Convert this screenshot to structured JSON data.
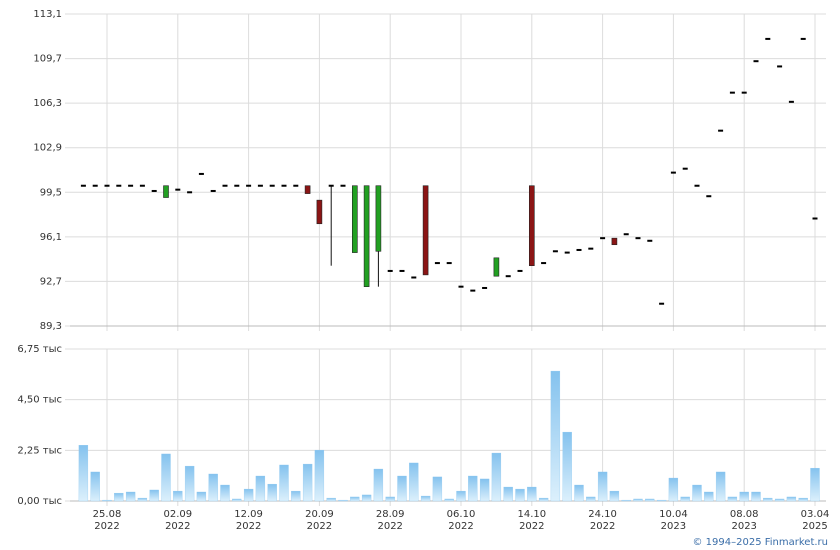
{
  "chart_data": [
    {
      "type": "candlestick",
      "open": [
        100,
        100,
        100,
        100,
        100,
        100,
        99.6,
        99.1,
        99.7,
        99.5,
        100.9,
        99.6,
        100,
        100,
        100,
        100,
        100,
        100,
        100,
        100,
        98.9,
        100,
        100,
        94.9,
        92.3,
        95.0,
        93.5,
        93.5,
        93.0,
        100,
        94.1,
        94.1,
        92.3,
        92.0,
        92.2,
        93.1,
        93.1,
        93.5,
        100,
        94.1,
        95.0,
        94.9,
        95.1,
        95.2,
        96.0,
        96.0,
        96.3,
        96.0,
        95.8,
        91.0,
        101.0,
        101.3,
        100,
        99.2,
        104.2,
        107.1,
        107.1,
        109.5,
        111.2,
        109.1,
        106.4,
        111.2,
        97.5
      ],
      "high": [
        100,
        100,
        100,
        100,
        100,
        100,
        99.6,
        100,
        99.7,
        99.5,
        100.9,
        99.6,
        100,
        100,
        100,
        100,
        100,
        100,
        100,
        100,
        98.9,
        100,
        100,
        100,
        100,
        100,
        93.5,
        93.5,
        93.0,
        100,
        94.1,
        94.1,
        92.3,
        92.0,
        92.2,
        94.5,
        93.1,
        93.5,
        100,
        94.1,
        95.0,
        94.9,
        95.1,
        95.2,
        96.0,
        96.0,
        96.3,
        96.0,
        95.8,
        91.0,
        101.0,
        101.3,
        100,
        99.2,
        104.2,
        107.1,
        107.1,
        109.5,
        111.2,
        109.1,
        106.4,
        111.2,
        97.5
      ],
      "low": [
        100,
        100,
        100,
        100,
        100,
        100,
        99.6,
        99.1,
        99.7,
        99.5,
        100.9,
        99.6,
        100,
        100,
        100,
        100,
        100,
        100,
        100,
        99.4,
        97.1,
        93.9,
        100,
        94.9,
        92.3,
        92.3,
        93.5,
        93.5,
        93.0,
        93.2,
        94.1,
        94.1,
        92.3,
        92.0,
        92.2,
        93.1,
        93.1,
        93.5,
        93.9,
        94.1,
        95.0,
        94.9,
        95.1,
        95.2,
        96.0,
        95.5,
        96.3,
        96.0,
        95.8,
        91.0,
        101.0,
        101.3,
        100,
        99.2,
        104.2,
        107.1,
        107.1,
        109.5,
        111.2,
        109.1,
        106.4,
        111.2,
        97.5
      ],
      "close": [
        100,
        100,
        100,
        100,
        100,
        100,
        99.6,
        100,
        99.7,
        99.5,
        100.9,
        99.6,
        100,
        100,
        100,
        100,
        100,
        100,
        100,
        99.4,
        97.1,
        100,
        100,
        100,
        100,
        100,
        93.5,
        93.5,
        93.0,
        93.2,
        94.1,
        94.1,
        92.3,
        92.0,
        92.2,
        94.5,
        93.1,
        93.5,
        93.9,
        94.1,
        95.0,
        94.9,
        95.1,
        95.2,
        96.0,
        95.5,
        96.3,
        96.0,
        95.8,
        91.0,
        101.0,
        101.3,
        100,
        99.2,
        104.2,
        107.1,
        107.1,
        109.5,
        111.2,
        109.1,
        106.4,
        111.2,
        97.5
      ],
      "up_color": "#22a022",
      "down_color": "#8b1515",
      "flat_color": "#000000",
      "ylim": [
        89.3,
        113.1
      ],
      "yticks": [
        {
          "value": 89.3,
          "label": "89,3"
        },
        {
          "value": 92.7,
          "label": "92,7"
        },
        {
          "value": 96.1,
          "label": "96,1"
        },
        {
          "value": 99.5,
          "label": "99,5"
        },
        {
          "value": 102.9,
          "label": "102,9"
        },
        {
          "value": 106.3,
          "label": "106,3"
        },
        {
          "value": 109.7,
          "label": "109,7"
        },
        {
          "value": 113.1,
          "label": "113,1"
        }
      ],
      "grid": true
    },
    {
      "type": "bar",
      "categories": [
        null,
        null,
        "25.08",
        null,
        null,
        null,
        null,
        null,
        "02.09",
        null,
        null,
        null,
        null,
        null,
        "12.09",
        null,
        null,
        null,
        null,
        null,
        "20.09",
        null,
        null,
        null,
        null,
        null,
        "28.09",
        null,
        null,
        null,
        null,
        null,
        "06.10",
        null,
        null,
        null,
        null,
        null,
        "14.10",
        null,
        null,
        null,
        null,
        null,
        "24.10",
        null,
        null,
        null,
        null,
        null,
        "10.04",
        null,
        null,
        null,
        null,
        null,
        "08.08",
        null,
        null,
        null,
        null,
        null,
        "03.04"
      ],
      "category_years": [
        null,
        null,
        "2022",
        null,
        null,
        null,
        null,
        null,
        "2022",
        null,
        null,
        null,
        null,
        null,
        "2022",
        null,
        null,
        null,
        null,
        null,
        "2022",
        null,
        null,
        null,
        null,
        null,
        "2022",
        null,
        null,
        null,
        null,
        null,
        "2022",
        null,
        null,
        null,
        null,
        null,
        "2022",
        null,
        null,
        null,
        null,
        null,
        "2022",
        null,
        null,
        null,
        null,
        null,
        "2023",
        null,
        null,
        null,
        null,
        null,
        "2023",
        null,
        null,
        null,
        null,
        null,
        "2025"
      ],
      "values": [
        2480,
        1290,
        40,
        350,
        400,
        130,
        490,
        2090,
        440,
        1550,
        400,
        1200,
        710,
        90,
        530,
        1110,
        750,
        1600,
        440,
        1640,
        2260,
        130,
        40,
        180,
        270,
        1420,
        180,
        1110,
        1690,
        220,
        1070,
        90,
        440,
        1110,
        980,
        2130,
        620,
        530,
        620,
        130,
        5770,
        3060,
        710,
        180,
        1290,
        440,
        40,
        90,
        90,
        40,
        1020,
        180,
        710,
        400,
        1290,
        180,
        400,
        400,
        130,
        90,
        180,
        130,
        1460
      ],
      "color": "#8ec8f0",
      "ylim": [
        0,
        6750
      ],
      "yticks": [
        {
          "value": 0,
          "label": "0,00 тыс"
        },
        {
          "value": 2250,
          "label": "2,25 тыс"
        },
        {
          "value": 4500,
          "label": "4,50 тыс"
        },
        {
          "value": 6750,
          "label": "6,75 тыс"
        }
      ],
      "grid": true
    }
  ],
  "footer": "© 1994–2025 Finmarket.ru"
}
